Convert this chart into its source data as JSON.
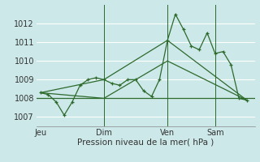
{
  "title": "",
  "xlabel": "Pression niveau de la mer( hPa )",
  "background_color": "#cce8e8",
  "grid_color": "#ffffff",
  "line_color": "#2d6a2d",
  "ylim": [
    1006.5,
    1013.0
  ],
  "yticks": [
    1007,
    1008,
    1009,
    1010,
    1011,
    1012
  ],
  "xtick_labels": [
    "Jeu",
    "Dim",
    "Ven",
    "Sam"
  ],
  "xtick_positions": [
    0,
    8,
    16,
    22
  ],
  "xlim": [
    -0.5,
    27
  ],
  "line1_x": [
    0,
    1,
    2,
    3,
    4,
    5,
    6,
    7,
    8,
    9,
    10,
    11,
    12,
    13,
    14,
    15,
    16,
    17,
    18,
    19,
    20,
    21,
    22,
    23,
    24,
    25,
    26
  ],
  "line1_y": [
    1008.3,
    1008.2,
    1007.8,
    1007.1,
    1007.8,
    1008.7,
    1009.0,
    1009.1,
    1009.0,
    1008.8,
    1008.7,
    1009.0,
    1009.0,
    1008.4,
    1008.1,
    1009.0,
    1011.1,
    1012.5,
    1011.7,
    1010.8,
    1010.6,
    1011.5,
    1010.4,
    1010.5,
    1009.8,
    1008.0,
    1007.9
  ],
  "line2_x": [
    0,
    8,
    16,
    26
  ],
  "line2_y": [
    1008.3,
    1009.0,
    1011.1,
    1007.9
  ],
  "line3_x": [
    0,
    8,
    16,
    26
  ],
  "line3_y": [
    1008.3,
    1008.0,
    1010.0,
    1007.9
  ],
  "hline_y": 1008.0,
  "vline_positions": [
    8,
    16,
    22
  ],
  "figsize": [
    3.2,
    2.0
  ],
  "dpi": 100
}
